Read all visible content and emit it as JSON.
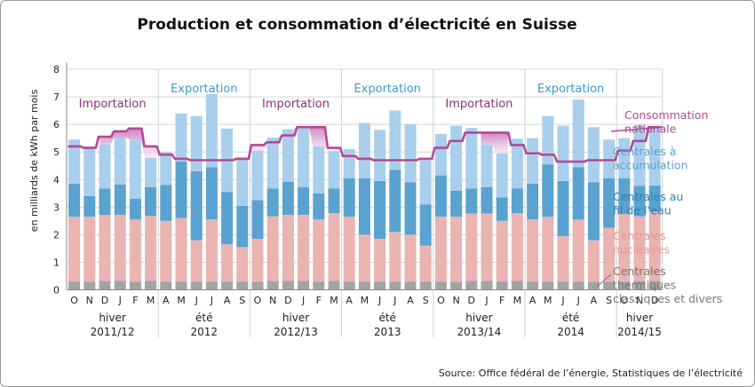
{
  "chart_data": {
    "type": "bar",
    "title": "Production et consommation d’électricité en Suisse",
    "ylabel": "en milliards de kWh par mois",
    "ylim": [
      0,
      8
    ],
    "yticks": [
      "0",
      "1",
      "2",
      "3",
      "4",
      "5",
      "6",
      "7",
      "8"
    ],
    "categories": [
      "O",
      "N",
      "D",
      "J",
      "F",
      "M",
      "A",
      "M",
      "J",
      "J",
      "A",
      "S",
      "O",
      "N",
      "D",
      "J",
      "F",
      "M",
      "A",
      "M",
      "J",
      "J",
      "A",
      "S",
      "O",
      "N",
      "D",
      "J",
      "F",
      "M",
      "A",
      "M",
      "J",
      "J",
      "A",
      "S",
      "O",
      "N",
      "D"
    ],
    "stacked": true,
    "series": [
      {
        "name": "Centrales thermiques classiques et divers",
        "color": "#a3a3a3",
        "values": [
          0.3,
          0.3,
          0.32,
          0.32,
          0.3,
          0.33,
          0.3,
          0.3,
          0.3,
          0.3,
          0.3,
          0.3,
          0.3,
          0.32,
          0.32,
          0.32,
          0.3,
          0.33,
          0.3,
          0.3,
          0.3,
          0.3,
          0.3,
          0.3,
          0.3,
          0.3,
          0.32,
          0.32,
          0.3,
          0.33,
          0.3,
          0.3,
          0.3,
          0.3,
          0.3,
          0.3,
          0.3,
          0.32,
          0.33
        ]
      },
      {
        "name": "Centrales nucléaires",
        "color": "#e9b4b2",
        "values": [
          2.35,
          2.35,
          2.4,
          2.4,
          2.25,
          2.35,
          2.2,
          2.3,
          1.5,
          2.25,
          1.35,
          1.25,
          1.55,
          2.35,
          2.4,
          2.4,
          2.25,
          2.45,
          2.35,
          1.7,
          1.55,
          1.8,
          1.7,
          1.3,
          2.35,
          2.35,
          2.45,
          2.45,
          2.2,
          2.45,
          2.25,
          2.35,
          1.65,
          2.25,
          1.5,
          1.95,
          2.45,
          2.35,
          2.5
        ]
      },
      {
        "name": "Centrales au fil de l’eau",
        "color": "#5aa2d0",
        "values": [
          1.2,
          0.75,
          0.95,
          1.1,
          0.75,
          1.05,
          1.3,
          2.05,
          2.5,
          1.9,
          1.9,
          1.5,
          1.4,
          1.0,
          1.2,
          1.0,
          0.95,
          0.9,
          1.4,
          2.05,
          2.1,
          2.25,
          1.9,
          1.5,
          1.5,
          0.95,
          0.9,
          0.95,
          0.85,
          0.9,
          1.3,
          1.9,
          2.0,
          1.9,
          2.1,
          1.8,
          1.3,
          1.1,
          0.95
        ]
      },
      {
        "name": "Centrales à accumulation",
        "color": "#aacfec",
        "values": [
          1.6,
          1.8,
          1.6,
          1.7,
          2.15,
          1.05,
          1.2,
          1.75,
          2.0,
          2.65,
          2.3,
          1.75,
          1.8,
          1.85,
          1.9,
          2.15,
          1.7,
          1.35,
          1.05,
          2.0,
          1.85,
          2.15,
          2.1,
          1.6,
          1.5,
          2.35,
          2.2,
          1.55,
          1.6,
          1.8,
          1.65,
          1.75,
          2.0,
          2.45,
          2.0,
          1.4,
          1.45,
          2.2,
          2.15
        ]
      }
    ],
    "line_series": {
      "name": "Consommation nationale",
      "color": "#b14a96",
      "values": [
        5.2,
        5.15,
        5.55,
        5.75,
        5.85,
        5.2,
        4.9,
        4.75,
        4.7,
        4.7,
        4.7,
        4.75,
        5.25,
        5.35,
        5.6,
        5.9,
        5.9,
        5.15,
        4.85,
        4.75,
        4.7,
        4.7,
        4.7,
        4.75,
        5.15,
        5.4,
        5.7,
        5.7,
        5.7,
        5.25,
        4.95,
        4.9,
        4.65,
        4.65,
        4.7,
        4.7,
        5.05,
        5.4,
        5.9
      ]
    },
    "periods": [
      {
        "label": "hiver",
        "sub": "2011/12",
        "start": 0,
        "end": 5,
        "flow": "Importation"
      },
      {
        "label": "été",
        "sub": "2012",
        "start": 6,
        "end": 11,
        "flow": "Exportation"
      },
      {
        "label": "hiver",
        "sub": "2012/13",
        "start": 12,
        "end": 17,
        "flow": "Importation"
      },
      {
        "label": "été",
        "sub": "2013",
        "start": 18,
        "end": 23,
        "flow": "Exportation"
      },
      {
        "label": "hiver",
        "sub": "2013/14",
        "start": 24,
        "end": 29,
        "flow": "Importation"
      },
      {
        "label": "été",
        "sub": "2014",
        "start": 30,
        "end": 35,
        "flow": "Exportation"
      },
      {
        "label": "hiver",
        "sub": "2014/15",
        "start": 36,
        "end": 38,
        "flow": ""
      }
    ],
    "legend": [
      {
        "text": "Consommation nationale",
        "color": "#b14a96"
      },
      {
        "text": "Centrales à accumulation",
        "color": "#5aa2d0"
      },
      {
        "text": "Centrales au fil de l’eau",
        "color": "#2f7fb8"
      },
      {
        "text": "Centrales nucléaires",
        "color": "#e39a98"
      },
      {
        "text": "Centrales thermiques classiques et divers",
        "color": "#777777"
      }
    ],
    "flow_colors": {
      "Importation": "#8e2f7e",
      "Exportation": "#3a9bd0"
    },
    "grid": true,
    "source": "Source: Office fédéral de l’énergie, Statistiques de l’électricité"
  }
}
